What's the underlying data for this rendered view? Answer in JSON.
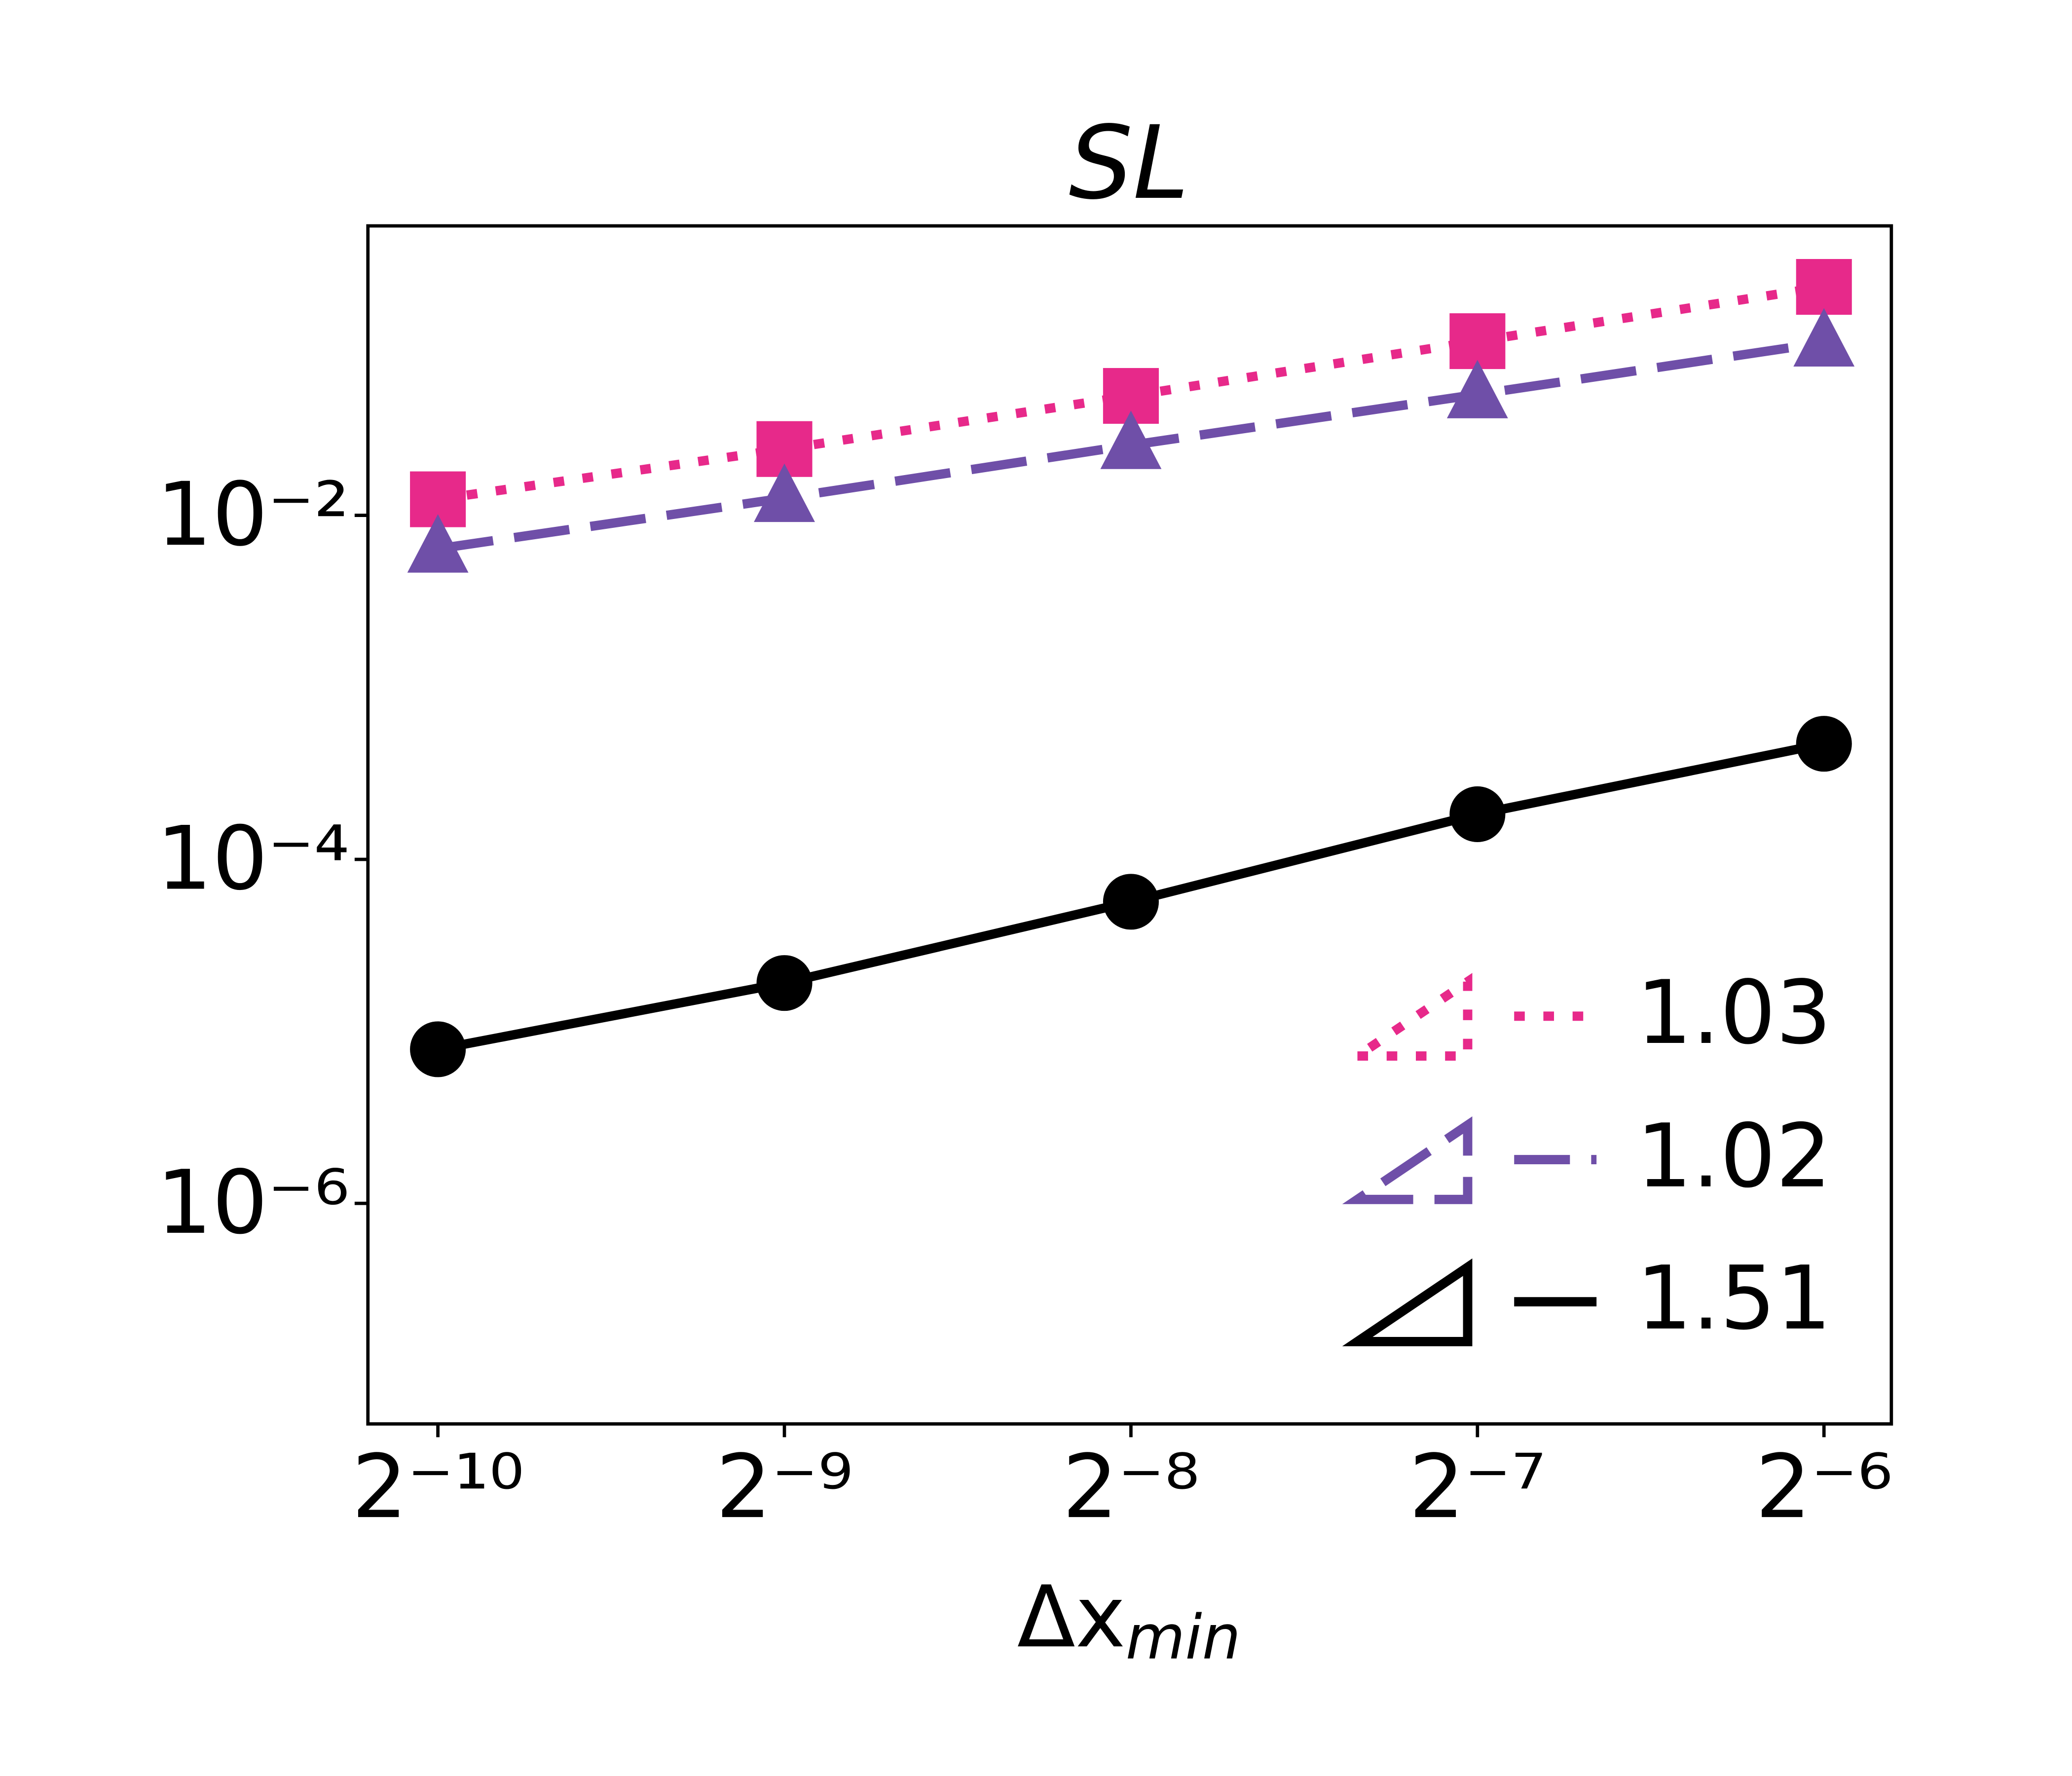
{
  "chart_data": {
    "type": "line",
    "title": "SL",
    "xlabel": "Δx",
    "xlabel_sub": "min",
    "xscale": "log2",
    "yscale": "log10",
    "x": [
      0.0009765625,
      0.001953125,
      0.00390625,
      0.0078125,
      0.015625
    ],
    "xlim": [
      0.000849,
      0.01788
    ],
    "xticks": [
      {
        "value": 0.0009765625,
        "label": "2⁻¹⁰"
      },
      {
        "value": 0.001953125,
        "label": "2⁻⁹"
      },
      {
        "value": 0.00390625,
        "label": "2⁻⁸"
      },
      {
        "value": 0.0078125,
        "label": "2⁻⁷"
      },
      {
        "value": 0.015625,
        "label": "2⁻⁶"
      }
    ],
    "ylim": [
      5.22e-08,
      0.482
    ],
    "yticks": [
      {
        "value": 0.01,
        "label": "10⁻²"
      },
      {
        "value": 0.0001,
        "label": "10⁻⁴"
      },
      {
        "value": 1e-06,
        "label": "10⁻⁶"
      }
    ],
    "legend": "lower right",
    "series": [
      {
        "name": "1.03",
        "color": "#e7298a",
        "linestyle": "dotted",
        "marker": "square",
        "values": [
          0.0124,
          0.0243,
          0.0495,
          0.103,
          0.213
        ]
      },
      {
        "name": "1.02",
        "color": "#6f4fa8",
        "linestyle": "dashed",
        "marker": "triangle",
        "values": [
          0.0064,
          0.0126,
          0.0256,
          0.0505,
          0.101
        ]
      },
      {
        "name": "1.51",
        "color": "#000000",
        "linestyle": "solid",
        "marker": "circle",
        "values": [
          7.87e-06,
          1.91e-05,
          5.67e-05,
          0.000183,
          0.00047
        ]
      }
    ]
  }
}
